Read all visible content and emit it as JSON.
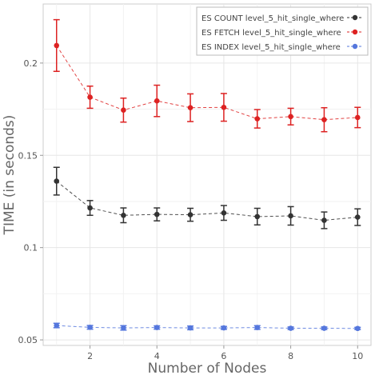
{
  "chart_data": {
    "type": "line",
    "title": "",
    "xlabel": "Number of Nodes",
    "ylabel": "TIME (in seconds)",
    "xlim": [
      0.6,
      10.4
    ],
    "ylim": [
      0.047,
      0.232
    ],
    "xticks": [
      2,
      4,
      6,
      8,
      10
    ],
    "yticks": [
      0.05,
      0.1,
      0.15,
      0.2
    ],
    "grid": true,
    "legend_position": "top-right",
    "x": [
      1,
      2,
      3,
      4,
      5,
      6,
      7,
      8,
      9,
      10
    ],
    "series": [
      {
        "name": "ES COUNT level_5_hit_single_where",
        "color": "#333333",
        "values": [
          0.136,
          0.1215,
          0.1175,
          0.118,
          0.1178,
          0.1188,
          0.1168,
          0.1172,
          0.1148,
          0.1165
        ],
        "error": [
          0.0075,
          0.004,
          0.004,
          0.0035,
          0.0035,
          0.004,
          0.0045,
          0.005,
          0.0045,
          0.0045
        ]
      },
      {
        "name": "ES FETCH level_5_hit_single_where",
        "color": "#dd2222",
        "values": [
          0.2095,
          0.1815,
          0.1745,
          0.1795,
          0.1758,
          0.176,
          0.1698,
          0.171,
          0.1693,
          0.1705
        ],
        "error": [
          0.014,
          0.006,
          0.0065,
          0.0085,
          0.0075,
          0.0075,
          0.005,
          0.0045,
          0.0065,
          0.0055
        ]
      },
      {
        "name": "ES INDEX level_5_hit_single_where",
        "color": "#5577dd",
        "values": [
          0.0578,
          0.0568,
          0.0565,
          0.0567,
          0.0565,
          0.0565,
          0.0567,
          0.0563,
          0.0563,
          0.0562
        ],
        "error": [
          0.0012,
          0.001,
          0.0012,
          0.0009,
          0.001,
          0.0008,
          0.001,
          0.0007,
          0.0007,
          0.0006
        ]
      }
    ]
  }
}
